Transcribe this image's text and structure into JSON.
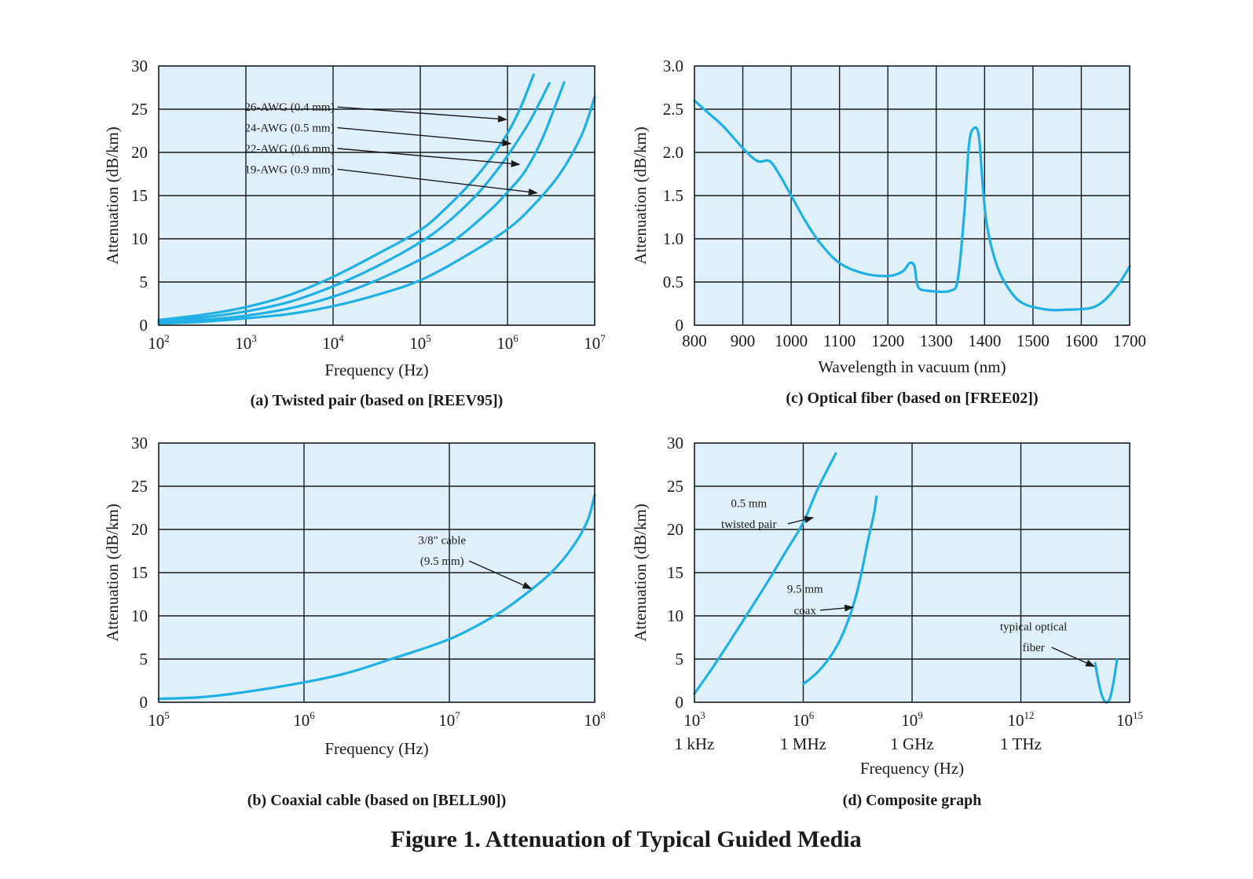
{
  "figure_title": "Figure 1. Attenuation of Typical Guided Media",
  "colors": {
    "curve": "#1fb0e6",
    "plot_background": "#dff0fb",
    "grid": "#1a1a1a"
  },
  "chart_data": [
    {
      "id": "a",
      "type": "line",
      "caption": "(a) Twisted pair (based on [REEV95])",
      "xlabel": "Frequency (Hz)",
      "ylabel": "Attenuation (dB/km)",
      "xscale": "log10",
      "xlim": [
        2,
        7
      ],
      "ylim": [
        0,
        30
      ],
      "grid": true,
      "x_ticks": [
        {
          "v": 2,
          "base": "10",
          "exp": "2"
        },
        {
          "v": 3,
          "base": "10",
          "exp": "3"
        },
        {
          "v": 4,
          "base": "10",
          "exp": "4"
        },
        {
          "v": 5,
          "base": "10",
          "exp": "5"
        },
        {
          "v": 6,
          "base": "10",
          "exp": "6"
        },
        {
          "v": 7,
          "base": "10",
          "exp": "7"
        }
      ],
      "y_ticks": [
        {
          "v": 0,
          "label": "0"
        },
        {
          "v": 5,
          "label": "5"
        },
        {
          "v": 10,
          "label": "10"
        },
        {
          "v": 15,
          "label": "15"
        },
        {
          "v": 20,
          "label": "20"
        },
        {
          "v": 25,
          "label": "25"
        },
        {
          "v": 30,
          "label": "30"
        }
      ],
      "series": [
        {
          "name": "26-AWG (0.4 mm)",
          "points": [
            [
              2,
              0.6
            ],
            [
              2.5,
              1.2
            ],
            [
              3,
              2.1
            ],
            [
              3.5,
              3.5
            ],
            [
              4,
              5.6
            ],
            [
              4.5,
              8.2
            ],
            [
              5,
              11
            ],
            [
              5.3,
              13.6
            ],
            [
              5.6,
              16.7
            ],
            [
              5.8,
              19.2
            ],
            [
              6,
              22.2
            ],
            [
              6.15,
              25.2
            ],
            [
              6.3,
              29
            ]
          ]
        },
        {
          "name": "24-AWG (0.5 mm)",
          "points": [
            [
              2,
              0.45
            ],
            [
              2.5,
              0.9
            ],
            [
              3,
              1.6
            ],
            [
              3.5,
              2.7
            ],
            [
              4,
              4.5
            ],
            [
              4.5,
              6.8
            ],
            [
              5,
              9.6
            ],
            [
              5.3,
              11.8
            ],
            [
              5.6,
              14.6
            ],
            [
              5.8,
              16.9
            ],
            [
              6,
              19.6
            ],
            [
              6.25,
              23.5
            ],
            [
              6.48,
              28
            ]
          ]
        },
        {
          "name": "22-AWG (0.6 mm)",
          "points": [
            [
              2,
              0.3
            ],
            [
              2.5,
              0.6
            ],
            [
              3,
              1.1
            ],
            [
              3.5,
              1.95
            ],
            [
              4,
              3.3
            ],
            [
              4.5,
              5.2
            ],
            [
              5,
              7.6
            ],
            [
              5.4,
              9.9
            ],
            [
              5.8,
              13.3
            ],
            [
              6,
              15.4
            ],
            [
              6.2,
              17.8
            ],
            [
              6.4,
              21.6
            ],
            [
              6.65,
              28.1
            ]
          ]
        },
        {
          "name": "19-AWG (0.9 mm)",
          "points": [
            [
              2,
              0.2
            ],
            [
              2.5,
              0.4
            ],
            [
              3,
              0.8
            ],
            [
              3.5,
              1.3
            ],
            [
              4,
              2.2
            ],
            [
              4.5,
              3.5
            ],
            [
              5,
              5.2
            ],
            [
              5.5,
              7.9
            ],
            [
              6,
              11.1
            ],
            [
              6.3,
              13.9
            ],
            [
              6.6,
              17.5
            ],
            [
              6.85,
              22.0
            ],
            [
              7,
              26.4
            ]
          ]
        }
      ],
      "annotations": [
        {
          "text": "26-AWG (0.4 mm)",
          "tx": 3.5,
          "ty": 24.8,
          "ax": 6.0,
          "ay": 23.8
        },
        {
          "text": "24-AWG (0.5 mm)",
          "tx": 3.5,
          "ty": 22.4,
          "ax": 6.05,
          "ay": 21.0
        },
        {
          "text": "22-AWG (0.6 mm)",
          "tx": 3.5,
          "ty": 20.0,
          "ax": 6.15,
          "ay": 18.6
        },
        {
          "text": "19-AWG (0.9 mm)",
          "tx": 3.5,
          "ty": 17.6,
          "ax": 6.35,
          "ay": 15.3
        }
      ]
    },
    {
      "id": "c",
      "type": "line",
      "caption": "(c) Optical fiber (based on [FREE02])",
      "xlabel": "Wavelength in vacuum (nm)",
      "ylabel": "Attenuation (dB/km)",
      "xscale": "linear",
      "xlim": [
        800,
        1700
      ],
      "ylim": [
        0,
        3.0
      ],
      "grid": true,
      "x_ticks": [
        {
          "v": 800,
          "label": "800"
        },
        {
          "v": 900,
          "label": "900"
        },
        {
          "v": 1000,
          "label": "1000"
        },
        {
          "v": 1100,
          "label": "1100"
        },
        {
          "v": 1200,
          "label": "1200"
        },
        {
          "v": 1300,
          "label": "1300"
        },
        {
          "v": 1400,
          "label": "1400"
        },
        {
          "v": 1500,
          "label": "1500"
        },
        {
          "v": 1600,
          "label": "1600"
        },
        {
          "v": 1700,
          "label": "1700"
        }
      ],
      "y_ticks": [
        {
          "v": 0,
          "label": "0"
        },
        {
          "v": 0.5,
          "label": "0.5"
        },
        {
          "v": 1.0,
          "label": "1.0"
        },
        {
          "v": 1.5,
          "label": "1.5"
        },
        {
          "v": 2.0,
          "label": "2.0"
        },
        {
          "v": 2.5,
          "label": "2.5"
        },
        {
          "v": 3.0,
          "label": "3.0"
        }
      ],
      "series": [
        {
          "name": "optical fiber",
          "points": [
            [
              800,
              2.6
            ],
            [
              830,
              2.45
            ],
            [
              860,
              2.3
            ],
            [
              900,
              2.05
            ],
            [
              930,
              1.9
            ],
            [
              955,
              1.9
            ],
            [
              975,
              1.75
            ],
            [
              1000,
              1.5
            ],
            [
              1030,
              1.2
            ],
            [
              1060,
              0.95
            ],
            [
              1100,
              0.72
            ],
            [
              1150,
              0.6
            ],
            [
              1200,
              0.57
            ],
            [
              1230,
              0.62
            ],
            [
              1245,
              0.72
            ],
            [
              1255,
              0.68
            ],
            [
              1262,
              0.45
            ],
            [
              1280,
              0.4
            ],
            [
              1330,
              0.4
            ],
            [
              1345,
              0.55
            ],
            [
              1358,
              1.3
            ],
            [
              1368,
              2.1
            ],
            [
              1378,
              2.28
            ],
            [
              1388,
              2.2
            ],
            [
              1395,
              1.7
            ],
            [
              1405,
              1.15
            ],
            [
              1425,
              0.7
            ],
            [
              1450,
              0.42
            ],
            [
              1480,
              0.25
            ],
            [
              1530,
              0.18
            ],
            [
              1570,
              0.18
            ],
            [
              1620,
              0.2
            ],
            [
              1650,
              0.3
            ],
            [
              1680,
              0.5
            ],
            [
              1700,
              0.68
            ]
          ]
        }
      ],
      "annotations": []
    },
    {
      "id": "b",
      "type": "line",
      "caption": "(b) Coaxial cable (based on [BELL90])",
      "xlabel": "Frequency (Hz)",
      "ylabel": "Attenuation (dB/km)",
      "xscale": "log10",
      "xlim": [
        5,
        8
      ],
      "ylim": [
        0,
        30
      ],
      "grid": true,
      "x_ticks": [
        {
          "v": 5,
          "base": "10",
          "exp": "5"
        },
        {
          "v": 6,
          "base": "10",
          "exp": "6"
        },
        {
          "v": 7,
          "base": "10",
          "exp": "7"
        },
        {
          "v": 8,
          "base": "10",
          "exp": "8"
        }
      ],
      "y_ticks": [
        {
          "v": 0,
          "label": "0"
        },
        {
          "v": 5,
          "label": "5"
        },
        {
          "v": 10,
          "label": "10"
        },
        {
          "v": 15,
          "label": "15"
        },
        {
          "v": 20,
          "label": "20"
        },
        {
          "v": 25,
          "label": "25"
        },
        {
          "v": 30,
          "label": "30"
        }
      ],
      "series": [
        {
          "name": "3/8\" cable (9.5 mm)",
          "points": [
            [
              5,
              0.4
            ],
            [
              5.3,
              0.6
            ],
            [
              5.6,
              1.2
            ],
            [
              6,
              2.3
            ],
            [
              6.3,
              3.4
            ],
            [
              6.6,
              5.0
            ],
            [
              7,
              7.3
            ],
            [
              7.3,
              9.9
            ],
            [
              7.5,
              12.2
            ],
            [
              7.7,
              15.0
            ],
            [
              7.85,
              18.0
            ],
            [
              7.95,
              21.0
            ],
            [
              8,
              24.0
            ]
          ]
        }
      ],
      "annotations": [
        {
          "text": "3/8\" cable",
          "tx": 6.95,
          "ty": 18.3,
          "ax": null,
          "ay": null
        },
        {
          "text": "(9.5 mm)",
          "tx": 6.95,
          "ty": 15.9,
          "ax": 7.57,
          "ay": 13.1
        }
      ]
    },
    {
      "id": "d",
      "type": "line",
      "caption": "(d) Composite graph",
      "xlabel": "Frequency (Hz)",
      "ylabel": "Attenuation (dB/km)",
      "xscale": "log10",
      "xlim": [
        3,
        15
      ],
      "ylim": [
        0,
        30
      ],
      "grid": true,
      "x_ticks": [
        {
          "v": 3,
          "base": "10",
          "exp": "3",
          "unit": "1 kHz"
        },
        {
          "v": 6,
          "base": "10",
          "exp": "6",
          "unit": "1 MHz"
        },
        {
          "v": 9,
          "base": "10",
          "exp": "9",
          "unit": "1 GHz"
        },
        {
          "v": 12,
          "base": "10",
          "exp": "12",
          "unit": "1 THz"
        },
        {
          "v": 15,
          "base": "10",
          "exp": "15",
          "unit": ""
        }
      ],
      "y_ticks": [
        {
          "v": 0,
          "label": "0"
        },
        {
          "v": 5,
          "label": "5"
        },
        {
          "v": 10,
          "label": "10"
        },
        {
          "v": 15,
          "label": "15"
        },
        {
          "v": 20,
          "label": "20"
        },
        {
          "v": 25,
          "label": "25"
        },
        {
          "v": 30,
          "label": "30"
        }
      ],
      "series": [
        {
          "name": "0.5 mm twisted pair",
          "points": [
            [
              3,
              1.0
            ],
            [
              3.5,
              4.0
            ],
            [
              4,
              7.2
            ],
            [
              4.5,
              10.5
            ],
            [
              5,
              13.8
            ],
            [
              5.5,
              17.3
            ],
            [
              6,
              20.8
            ],
            [
              6.4,
              24.7
            ],
            [
              6.9,
              28.8
            ]
          ]
        },
        {
          "name": "9.5 mm coax",
          "points": [
            [
              6,
              2.1
            ],
            [
              6.4,
              3.5
            ],
            [
              6.8,
              5.6
            ],
            [
              7.1,
              8.0
            ],
            [
              7.4,
              11.5
            ],
            [
              7.6,
              14.9
            ],
            [
              7.8,
              19.0
            ],
            [
              7.95,
              21.8
            ],
            [
              8.02,
              23.8
            ]
          ]
        },
        {
          "name": "typical optical fiber",
          "points": [
            [
              14.05,
              4.5
            ],
            [
              14.15,
              2.2
            ],
            [
              14.25,
              0.6
            ],
            [
              14.35,
              0.0
            ],
            [
              14.45,
              0.4
            ],
            [
              14.55,
              2.2
            ],
            [
              14.65,
              4.9
            ]
          ]
        }
      ],
      "annotations": [
        {
          "text": "0.5 mm",
          "tx": 4.5,
          "ty": 22.6,
          "ax": null,
          "ay": null
        },
        {
          "text": "twisted pair",
          "tx": 4.5,
          "ty": 20.2,
          "ax": 6.3,
          "ay": 21.4
        },
        {
          "text": "9.5 mm",
          "tx": 6.05,
          "ty": 12.7,
          "ax": null,
          "ay": null
        },
        {
          "text": "coax",
          "tx": 6.05,
          "ty": 10.2,
          "ax": 7.4,
          "ay": 11.0
        },
        {
          "text": "typical optical",
          "tx": 12.35,
          "ty": 8.3,
          "ax": null,
          "ay": null
        },
        {
          "text": "fiber",
          "tx": 12.35,
          "ty": 5.9,
          "ax": 14.05,
          "ay": 4.1
        }
      ]
    }
  ]
}
